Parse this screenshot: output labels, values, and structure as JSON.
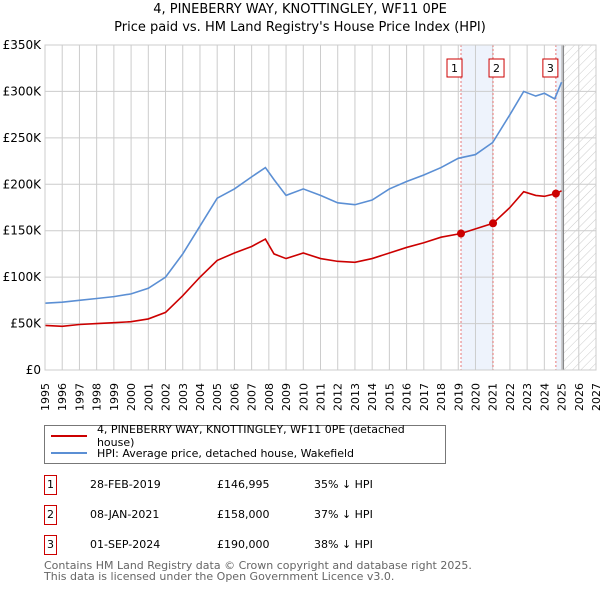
{
  "chart_data": {
    "type": "line",
    "title": "4, PINEBERRY WAY, KNOTTINGLEY, WF11 0PE",
    "subtitle": "Price paid vs. HM Land Registry's House Price Index (HPI)",
    "xlim": [
      1995,
      2027
    ],
    "ylim": [
      0,
      350000
    ],
    "x_ticks": [
      "1995",
      "1996",
      "1997",
      "1998",
      "1999",
      "2000",
      "2001",
      "2002",
      "2003",
      "2004",
      "2005",
      "2006",
      "2007",
      "2008",
      "2009",
      "2010",
      "2011",
      "2012",
      "2013",
      "2014",
      "2015",
      "2016",
      "2017",
      "2018",
      "2019",
      "2020",
      "2021",
      "2022",
      "2023",
      "2024",
      "2025",
      "2026",
      "2027"
    ],
    "y_ticks": [
      {
        "v": 0,
        "label": "£0"
      },
      {
        "v": 50000,
        "label": "£50K"
      },
      {
        "v": 100000,
        "label": "£100K"
      },
      {
        "v": 150000,
        "label": "£150K"
      },
      {
        "v": 200000,
        "label": "£200K"
      },
      {
        "v": 250000,
        "label": "£250K"
      },
      {
        "v": 300000,
        "label": "£300K"
      },
      {
        "v": 350000,
        "label": "£350K"
      }
    ],
    "grid": true,
    "forecast_start": 2025.1,
    "series": [
      {
        "name": "4, PINEBERRY WAY, KNOTTINGLEY, WF11 0PE (detached house)",
        "color": "#cc0000",
        "x": [
          1995,
          1996,
          1997,
          1998,
          1999,
          2000,
          2001,
          2002,
          2003,
          2004,
          2005,
          2006,
          2007,
          2007.8,
          2008.3,
          2009,
          2010,
          2011,
          2012,
          2013,
          2014,
          2015,
          2016,
          2017,
          2018,
          2019.16,
          2020,
          2021.02,
          2022,
          2022.8,
          2023.5,
          2024,
          2024.67,
          2025
        ],
        "y": [
          48000,
          47000,
          49000,
          50000,
          51000,
          52000,
          55000,
          62000,
          80000,
          100000,
          118000,
          126000,
          133000,
          141000,
          125000,
          120000,
          126000,
          120000,
          117000,
          116000,
          120000,
          126000,
          132000,
          137000,
          143000,
          146995,
          152000,
          158000,
          175000,
          192000,
          188000,
          187000,
          190000,
          193000
        ]
      },
      {
        "name": "HPI: Average price, detached house, Wakefield",
        "color": "#5b8fd4",
        "x": [
          1995,
          1996,
          1997,
          1998,
          1999,
          2000,
          2001,
          2002,
          2003,
          2004,
          2005,
          2006,
          2007,
          2007.8,
          2008.3,
          2009,
          2010,
          2011,
          2012,
          2013,
          2014,
          2015,
          2016,
          2017,
          2018,
          2019,
          2020,
          2021,
          2022,
          2022.8,
          2023.5,
          2024,
          2024.6,
          2025
        ],
        "y": [
          72000,
          73000,
          75000,
          77000,
          79000,
          82000,
          88000,
          100000,
          125000,
          155000,
          185000,
          195000,
          208000,
          218000,
          205000,
          188000,
          195000,
          188000,
          180000,
          178000,
          183000,
          195000,
          203000,
          210000,
          218000,
          228000,
          232000,
          245000,
          275000,
          300000,
          295000,
          298000,
          292000,
          310000
        ]
      }
    ],
    "sales": [
      {
        "n": "1",
        "x": 2019.16,
        "date": "28-FEB-2019",
        "price": 146995,
        "price_label": "£146,995",
        "hpi": "35% ↓ HPI"
      },
      {
        "n": "2",
        "x": 2021.02,
        "date": "08-JAN-2021",
        "price": 158000,
        "price_label": "£158,000",
        "hpi": "37% ↓ HPI"
      },
      {
        "n": "3",
        "x": 2024.67,
        "date": "01-SEP-2024",
        "price": 190000,
        "price_label": "£190,000",
        "hpi": "38% ↓ HPI"
      }
    ]
  },
  "footer": {
    "line1": "Contains HM Land Registry data © Crown copyright and database right 2025.",
    "line2": "This data is licensed under the Open Government Licence v3.0."
  }
}
